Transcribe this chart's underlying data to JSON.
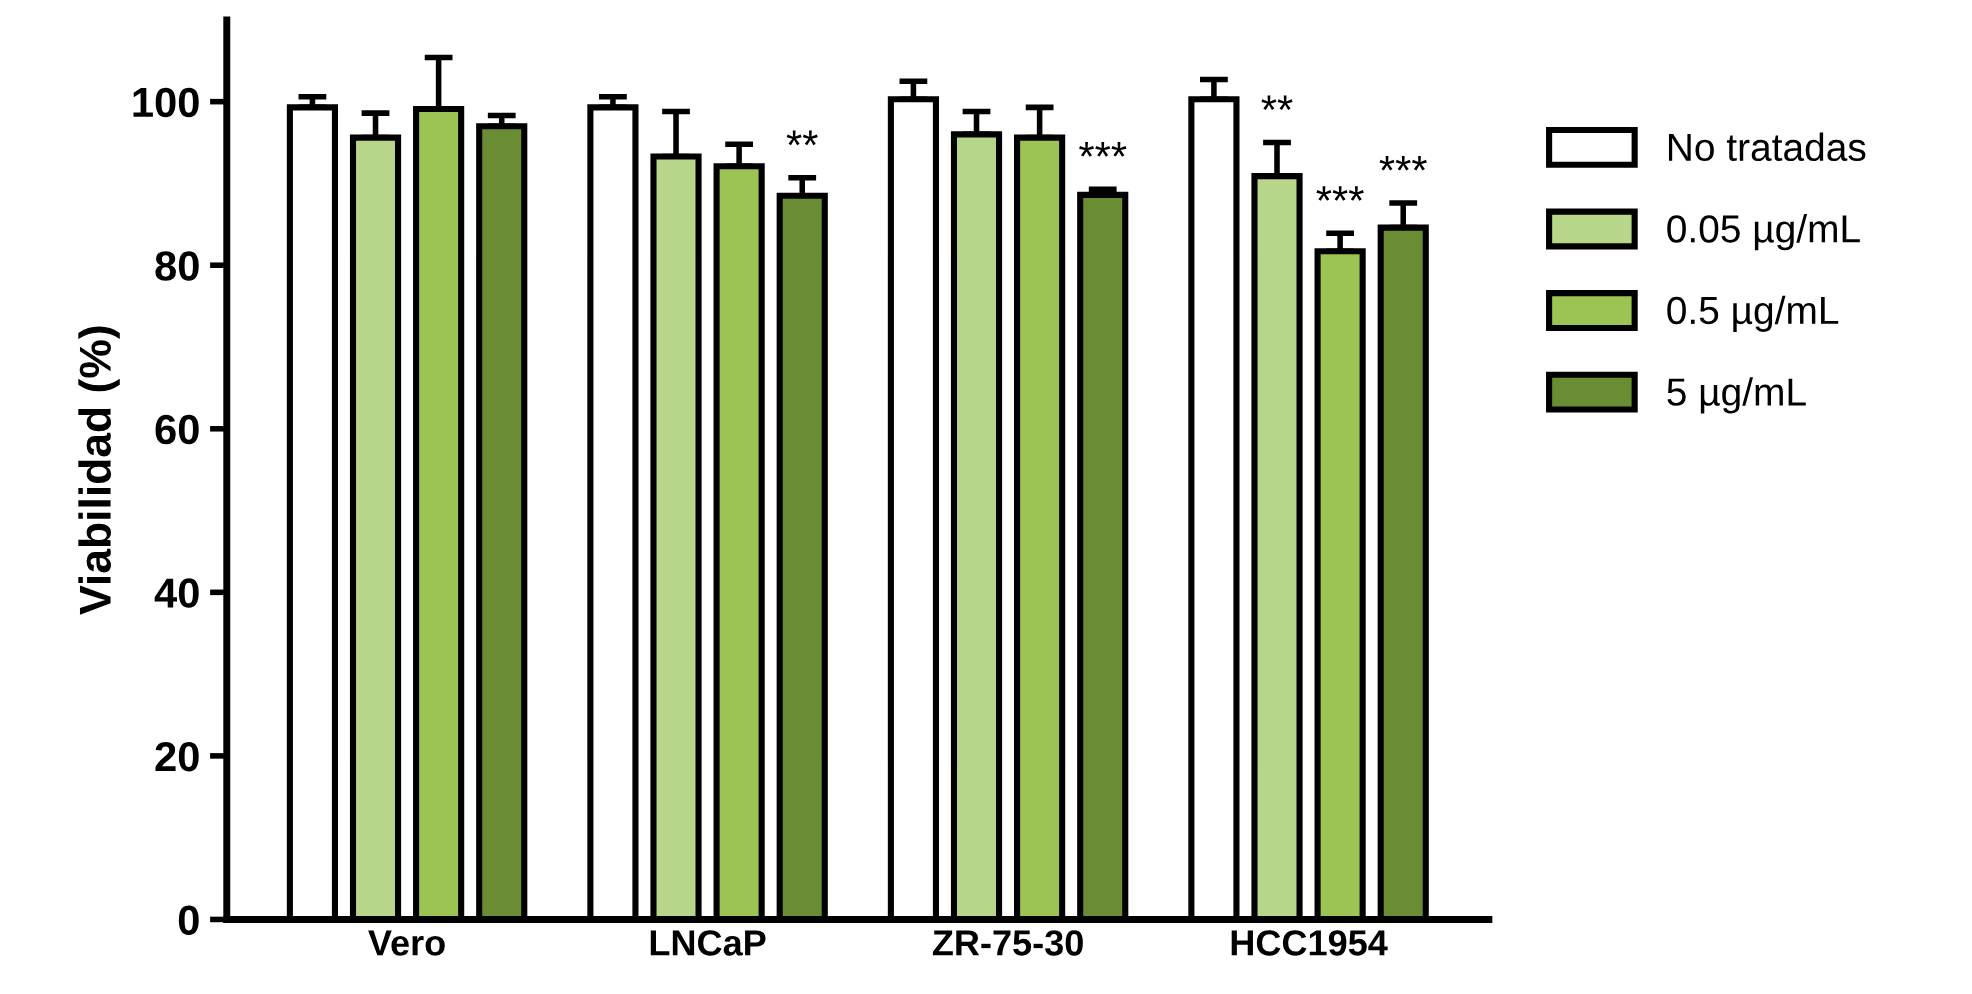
{
  "chart_data": {
    "type": "bar",
    "ylabel": "Viabilidad (%)",
    "categories": [
      "Vero",
      "LNCaP",
      "ZR-75-30",
      "HCC1954"
    ],
    "series": [
      {
        "name": "No tratadas",
        "color": "#ffffff",
        "values": [
          99.3,
          99.3,
          100.3,
          100.3
        ],
        "errors": [
          1.3,
          1.3,
          2.2,
          2.4
        ]
      },
      {
        "name": "0.05 µg/mL",
        "color": "#b8d68a",
        "values": [
          95.6,
          93.3,
          96.0,
          90.9
        ],
        "errors": [
          3.0,
          5.5,
          2.8,
          4.1
        ],
        "value_labels": [
          null,
          null,
          null,
          "**"
        ]
      },
      {
        "name": "0.5 µg/mL",
        "color": "#9cc452",
        "values": [
          99.1,
          92.1,
          95.6,
          81.7
        ],
        "errors": [
          6.3,
          2.7,
          3.7,
          2.2
        ],
        "value_labels": [
          null,
          null,
          null,
          "***"
        ]
      },
      {
        "name": "5 µg/mL",
        "color": "#6a8c33",
        "values": [
          97.0,
          88.5,
          88.6,
          84.6
        ],
        "errors": [
          1.3,
          2.2,
          0.7,
          3.0
        ],
        "value_labels": [
          null,
          "**",
          "***",
          "***"
        ]
      }
    ],
    "ylim": [
      0,
      110
    ],
    "yticks": [
      0,
      20,
      40,
      60,
      80,
      100
    ],
    "grid": false,
    "legend": "right"
  }
}
